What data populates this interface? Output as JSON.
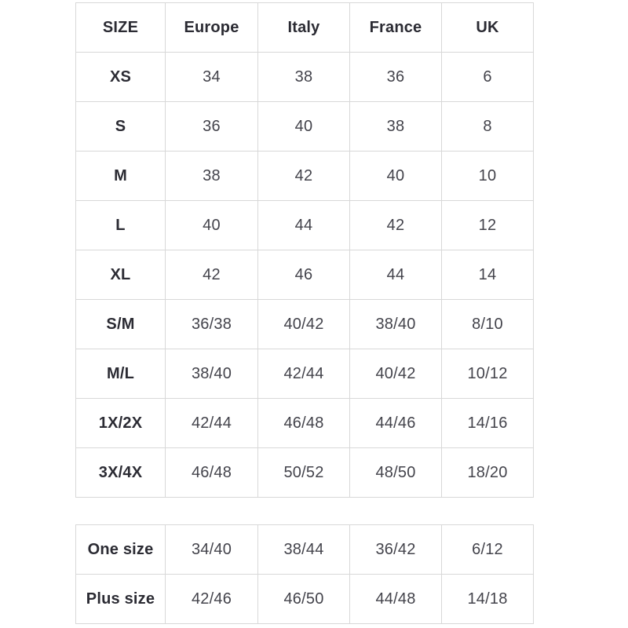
{
  "chart_data": [
    {
      "type": "table",
      "columns": [
        "SIZE",
        "Europe",
        "Italy",
        "France",
        "UK"
      ],
      "rows": [
        [
          "XS",
          "34",
          "38",
          "36",
          "6"
        ],
        [
          "S",
          "36",
          "40",
          "38",
          "8"
        ],
        [
          "M",
          "38",
          "42",
          "40",
          "10"
        ],
        [
          "L",
          "40",
          "44",
          "42",
          "12"
        ],
        [
          "XL",
          "42",
          "46",
          "44",
          "14"
        ],
        [
          "S/M",
          "36/38",
          "40/42",
          "38/40",
          "8/10"
        ],
        [
          "M/L",
          "38/40",
          "42/44",
          "40/42",
          "10/12"
        ],
        [
          "1X/2X",
          "42/44",
          "46/48",
          "44/46",
          "14/16"
        ],
        [
          "3X/4X",
          "46/48",
          "50/52",
          "48/50",
          "18/20"
        ]
      ]
    },
    {
      "type": "table",
      "rows": [
        [
          "One size",
          "34/40",
          "38/44",
          "36/42",
          "6/12"
        ],
        [
          "Plus size",
          "42/46",
          "46/50",
          "44/48",
          "14/18"
        ]
      ]
    }
  ],
  "colors": {
    "background": "#ffffff",
    "border": "#d8d8d8",
    "header_text": "#2b2b33",
    "cell_text": "#43434b"
  }
}
